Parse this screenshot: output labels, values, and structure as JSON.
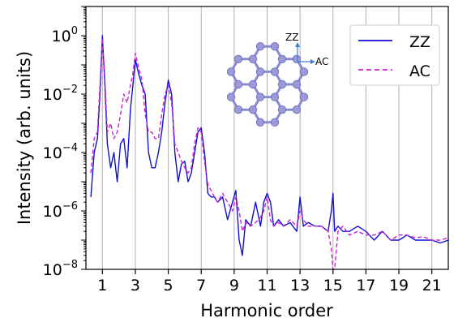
{
  "chart_data": {
    "type": "line",
    "xlabel": "Harmonic order",
    "ylabel": "Intensity (arb. units)",
    "xlim": [
      0,
      22
    ],
    "ylim": [
      1e-08,
      10
    ],
    "yscale": "log",
    "x_ticks": [
      1,
      3,
      5,
      7,
      9,
      11,
      13,
      15,
      17,
      19,
      21
    ],
    "x_tick_labels": [
      "1",
      "3",
      "5",
      "7",
      "9",
      "11",
      "13",
      "15",
      "17",
      "19",
      "21"
    ],
    "y_ticks": [
      1.0,
      0.01,
      0.0001,
      1e-06,
      1e-08
    ],
    "y_tick_base": "10",
    "y_tick_exponents": [
      "0",
      "−2",
      "−4",
      "−6",
      "−8"
    ],
    "vertical_grid": true,
    "legend_position": "top-right",
    "series": [
      {
        "name": "ZZ",
        "color": "#1010d0",
        "style": "solid",
        "x": [
          0.3,
          0.5,
          0.7,
          0.85,
          1.0,
          1.15,
          1.3,
          1.5,
          1.7,
          1.9,
          2.1,
          2.3,
          2.5,
          2.7,
          2.85,
          3.0,
          3.2,
          3.4,
          3.6,
          3.8,
          4.0,
          4.2,
          4.4,
          4.6,
          4.8,
          5.0,
          5.2,
          5.4,
          5.6,
          5.8,
          6.0,
          6.2,
          6.4,
          6.6,
          6.8,
          7.0,
          7.2,
          7.4,
          7.6,
          7.8,
          8.0,
          8.3,
          8.6,
          8.9,
          9.1,
          9.3,
          9.5,
          9.7,
          10.0,
          10.3,
          10.6,
          10.8,
          11.0,
          11.2,
          11.4,
          11.7,
          12.0,
          12.4,
          12.8,
          13.0,
          13.2,
          13.5,
          13.9,
          14.3,
          14.7,
          14.9,
          15.0,
          15.1,
          15.3,
          15.6,
          16.0,
          16.5,
          17.0,
          17.5,
          18.0,
          18.5,
          19.0,
          19.5,
          20.0,
          20.5,
          21.0,
          21.5,
          22.0
        ],
        "y": [
          3e-06,
          0.0001,
          0.0003,
          0.01,
          1.0,
          0.02,
          0.0002,
          3e-05,
          0.0001,
          1e-05,
          0.0002,
          0.0003,
          3e-05,
          0.003,
          0.02,
          0.15,
          0.05,
          0.02,
          0.01,
          0.0001,
          3e-05,
          3e-05,
          0.0001,
          0.0005,
          0.005,
          0.03,
          0.01,
          0.0001,
          1e-05,
          4e-05,
          5e-05,
          1e-05,
          2e-05,
          0.0001,
          0.0005,
          0.0007,
          0.0001,
          4e-06,
          3e-06,
          3e-06,
          2e-06,
          3e-06,
          5e-07,
          2e-06,
          5e-06,
          1e-07,
          3e-08,
          5e-07,
          3e-07,
          2e-06,
          3e-07,
          2e-06,
          4e-06,
          2e-06,
          3e-07,
          5e-07,
          3e-07,
          4e-07,
          2e-07,
          3e-06,
          3e-07,
          4e-07,
          3e-07,
          3e-07,
          2e-07,
          1e-06,
          4e-06,
          2e-07,
          3e-07,
          2e-07,
          2e-07,
          3e-07,
          2e-07,
          1e-07,
          2e-07,
          1e-07,
          1e-07,
          1.5e-07,
          1e-07,
          1e-07,
          1e-07,
          8e-08,
          1e-07
        ]
      },
      {
        "name": "AC",
        "color": "#cc22cc",
        "style": "dashed",
        "x": [
          0.3,
          0.5,
          0.7,
          0.85,
          1.0,
          1.15,
          1.3,
          1.5,
          1.7,
          1.9,
          2.1,
          2.3,
          2.5,
          2.7,
          2.85,
          3.0,
          3.2,
          3.4,
          3.6,
          3.8,
          4.0,
          4.2,
          4.4,
          4.6,
          4.8,
          5.0,
          5.2,
          5.4,
          5.6,
          5.8,
          6.0,
          6.2,
          6.4,
          6.6,
          6.8,
          7.0,
          7.2,
          7.4,
          7.6,
          7.8,
          8.0,
          8.3,
          8.6,
          8.9,
          9.1,
          9.3,
          9.5,
          9.7,
          10.0,
          10.3,
          10.6,
          10.8,
          11.0,
          11.2,
          11.4,
          11.7,
          12.0,
          12.4,
          12.8,
          13.0,
          13.2,
          13.5,
          13.9,
          14.3,
          14.7,
          14.9,
          15.0,
          15.1,
          15.3,
          15.6,
          16.0,
          16.5,
          17.0,
          17.5,
          18.0,
          18.5,
          19.0,
          19.5,
          20.0,
          20.5,
          21.0,
          21.5,
          22.0
        ],
        "y": [
          2e-05,
          0.0003,
          0.0005,
          0.02,
          0.8,
          0.03,
          0.0005,
          0.001,
          0.0003,
          0.0005,
          0.002,
          0.01,
          0.005,
          0.02,
          0.05,
          0.25,
          0.08,
          0.03,
          0.002,
          0.0005,
          0.0005,
          0.0003,
          0.0003,
          0.002,
          0.01,
          0.02,
          0.005,
          0.0002,
          0.0001,
          5e-05,
          3e-05,
          2e-05,
          3e-05,
          0.0002,
          0.0007,
          0.0005,
          5e-05,
          8e-06,
          5e-06,
          3e-06,
          2e-06,
          4e-06,
          2e-06,
          1e-06,
          3e-06,
          1e-06,
          2e-07,
          4e-07,
          3e-07,
          4e-07,
          6e-07,
          1e-06,
          3e-06,
          5e-07,
          3e-07,
          4e-07,
          3e-07,
          5e-07,
          3e-07,
          1e-06,
          5e-07,
          3e-07,
          3e-07,
          3e-07,
          2e-07,
          5e-08,
          1e-08,
          1e-08,
          2e-07,
          3e-07,
          1.5e-07,
          2e-07,
          1.5e-07,
          1.5e-07,
          2e-07,
          1e-07,
          1.5e-07,
          1.5e-07,
          1.2e-07,
          1.3e-07,
          1e-07,
          1e-07,
          1.2e-07
        ]
      }
    ],
    "inset": {
      "axis_label_zz": "ZZ",
      "axis_label_ac": "AC",
      "atom_color": "#9a9ad8",
      "bond_color": "#8a8ace"
    }
  }
}
